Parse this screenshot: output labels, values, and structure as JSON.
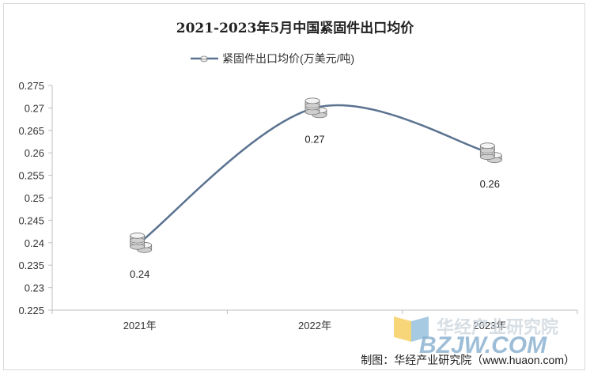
{
  "chart_data": {
    "type": "line",
    "title": "2021-2023年5月中国紧固件出口均价",
    "categories": [
      "2021年",
      "2022年",
      "2023年"
    ],
    "series": [
      {
        "name": "紧固件出口均价(万美元/吨)",
        "values": [
          0.24,
          0.27,
          0.26
        ],
        "color": "#5b7390"
      }
    ],
    "data_labels": [
      "0.24",
      "0.27",
      "0.26"
    ],
    "ylim": [
      0.225,
      0.275
    ],
    "yticks": [
      0.225,
      0.23,
      0.235,
      0.24,
      0.245,
      0.25,
      0.255,
      0.26,
      0.265,
      0.27,
      0.275
    ],
    "ytick_labels": [
      "0.225",
      "0.23",
      "0.235",
      "0.24",
      "0.245",
      "0.25",
      "0.255",
      "0.26",
      "0.265",
      "0.27",
      "0.275"
    ],
    "legend_position": "top-center",
    "grid": false,
    "line_style": "smooth",
    "marker": "coin-stack"
  },
  "source": "制图：华经产业研究院（www.huaon.com）",
  "watermark": {
    "line1": "华经产业研究院",
    "line2": "BZJW.COM"
  }
}
